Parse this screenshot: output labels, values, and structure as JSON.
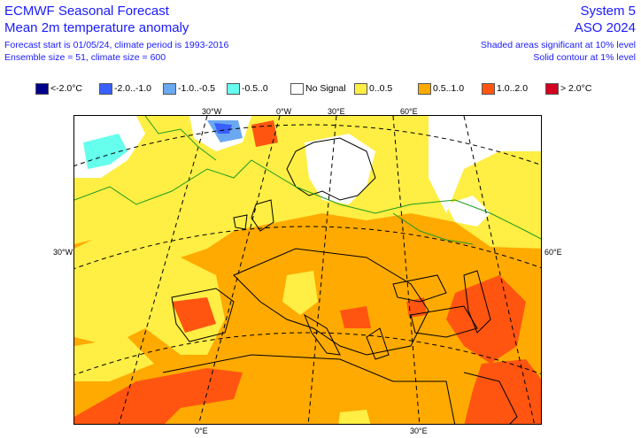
{
  "header": {
    "title": "ECMWF Seasonal Forecast",
    "subtitle": "Mean 2m temperature anomaly",
    "forecast_line": "Forecast start is 01/05/24, climate period is 1993-2016",
    "ensemble_line": "Ensemble size = 51, climate size = 600",
    "system": "System 5",
    "period": "ASO 2024",
    "sig10": "Shaded areas significant at 10% level",
    "sig1": "Solid contour at 1% level"
  },
  "legend": [
    {
      "label": "<-2.0°C",
      "color": "#00008b"
    },
    {
      "label": "-2.0..-1.0",
      "color": "#3a5fff"
    },
    {
      "label": "-1.0..-0.5",
      "color": "#6aa8f0"
    },
    {
      "label": "-0.5..0",
      "color": "#66ffee"
    },
    {
      "label": "No Signal",
      "color": "#ffffff"
    },
    {
      "label": "0..0.5",
      "color": "#ffee44"
    },
    {
      "label": "0.5..1.0",
      "color": "#ffaa00"
    },
    {
      "label": "1.0..2.0",
      "color": "#ff5511"
    },
    {
      "label": "> 2.0°C",
      "color": "#d40020"
    }
  ],
  "graticule_labels": {
    "top": [
      "30°W",
      "0°W",
      "30°E",
      "60°E"
    ],
    "left": "30°W",
    "right": "60°E",
    "bottom": [
      "0°E",
      "30°E"
    ]
  }
}
